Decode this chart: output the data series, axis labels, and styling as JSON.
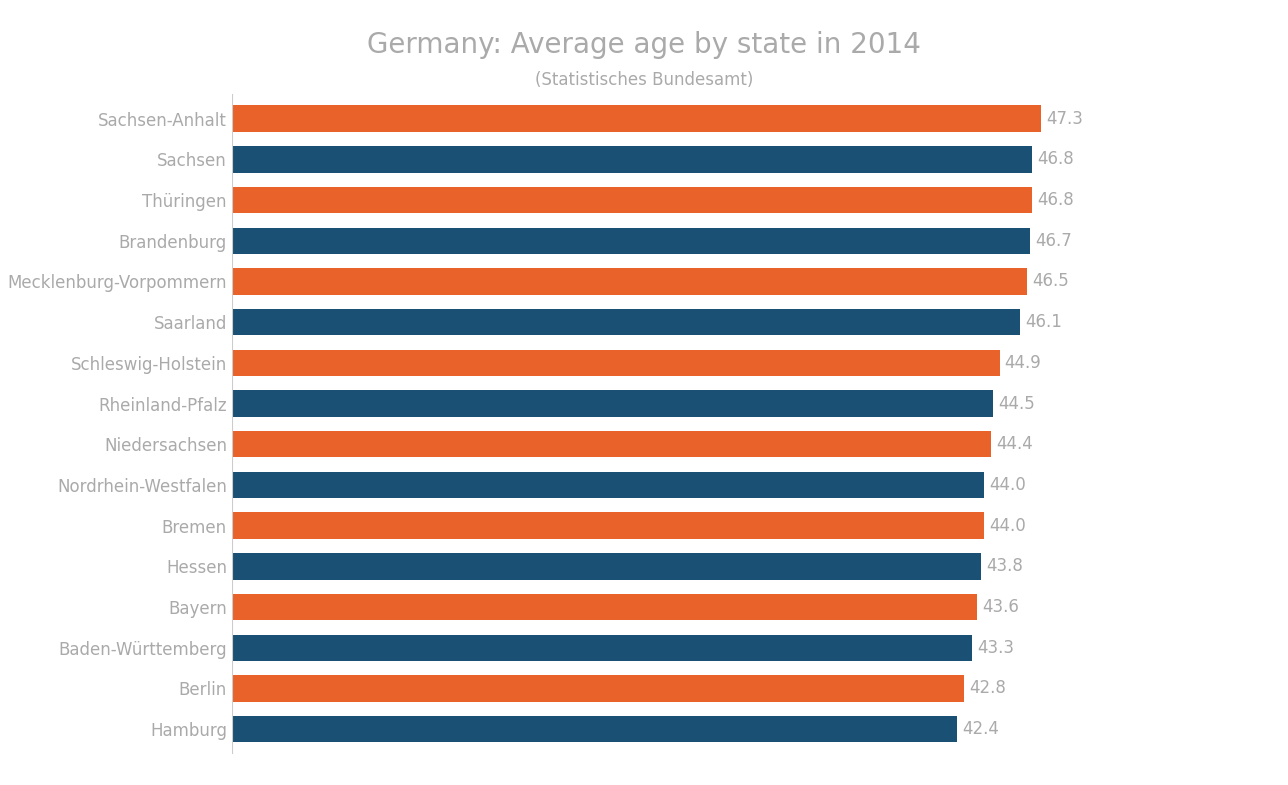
{
  "title": "Germany: Average age by state in 2014",
  "subtitle": "(Statistisches Bundesamt)",
  "states": [
    "Sachsen-Anhalt",
    "Sachsen",
    "Thüringen",
    "Brandenburg",
    "Mecklenburg-Vorpommern",
    "Saarland",
    "Schleswig-Holstein",
    "Rheinland-Pfalz",
    "Niedersachsen",
    "Nordrhein-Westfalen",
    "Bremen",
    "Hessen",
    "Bayern",
    "Baden-Württemberg",
    "Berlin",
    "Hamburg"
  ],
  "values": [
    47.3,
    46.8,
    46.8,
    46.7,
    46.5,
    46.1,
    44.9,
    44.5,
    44.4,
    44.0,
    44.0,
    43.8,
    43.6,
    43.3,
    42.8,
    42.4
  ],
  "colors": [
    "#e8622a",
    "#1a5073",
    "#e8622a",
    "#1a5073",
    "#e8622a",
    "#1a5073",
    "#e8622a",
    "#1a5073",
    "#e8622a",
    "#1a5073",
    "#e8622a",
    "#1a5073",
    "#e8622a",
    "#1a5073",
    "#e8622a",
    "#1a5073"
  ],
  "background_color": "#ffffff",
  "text_color": "#aaaaaa",
  "title_color": "#aaaaaa",
  "bar_height": 0.65,
  "xlim_max": 58,
  "label_fontsize": 12,
  "title_fontsize": 20,
  "subtitle_fontsize": 12,
  "value_fontsize": 12
}
